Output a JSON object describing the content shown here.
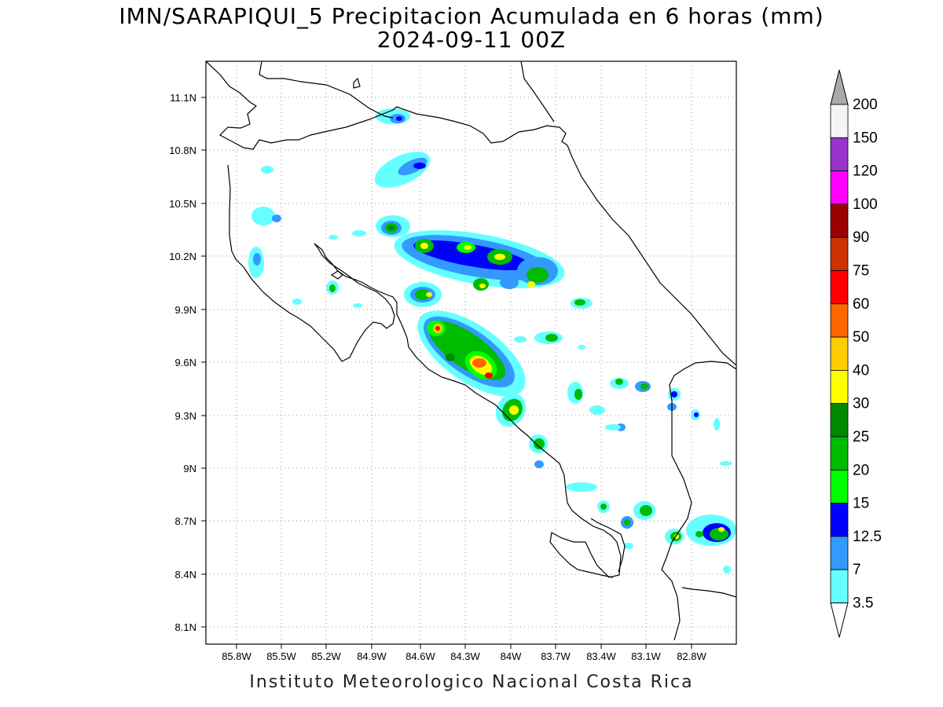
{
  "title": {
    "line1": "IMN/SARAPIQUI_5 Precipitacion Acumulada en 6 horas (mm)",
    "line2": "2024-09-11 00Z"
  },
  "footer": "Instituto Meteorologico Nacional Costa Rica",
  "axes": {
    "lat_ticks": [
      "11.1N",
      "10.8N",
      "10.5N",
      "10.2N",
      "9.9N",
      "9.6N",
      "9.3N",
      "9N",
      "8.7N",
      "8.4N",
      "8.1N"
    ],
    "lon_ticks": [
      "85.8W",
      "85.5W",
      "85.2W",
      "84.9W",
      "84.6W",
      "84.3W",
      "84W",
      "83.7W",
      "83.4W",
      "83.1W",
      "82.8W"
    ]
  },
  "colorbar": {
    "levels": [
      "200",
      "150",
      "120",
      "100",
      "90",
      "75",
      "60",
      "50",
      "40",
      "30",
      "25",
      "20",
      "15",
      "12.5",
      "7",
      "3.5"
    ],
    "colors": [
      "#f5f5f5",
      "#9933cc",
      "#ff00ff",
      "#990000",
      "#cc3300",
      "#ff0000",
      "#ff6600",
      "#ffcc00",
      "#ffff00",
      "#008800",
      "#00bb00",
      "#00ff00",
      "#0000ff",
      "#3399ff",
      "#66ffff"
    ],
    "top_cap": "#aaaaaa",
    "bottom_cap": "#ffffff"
  }
}
